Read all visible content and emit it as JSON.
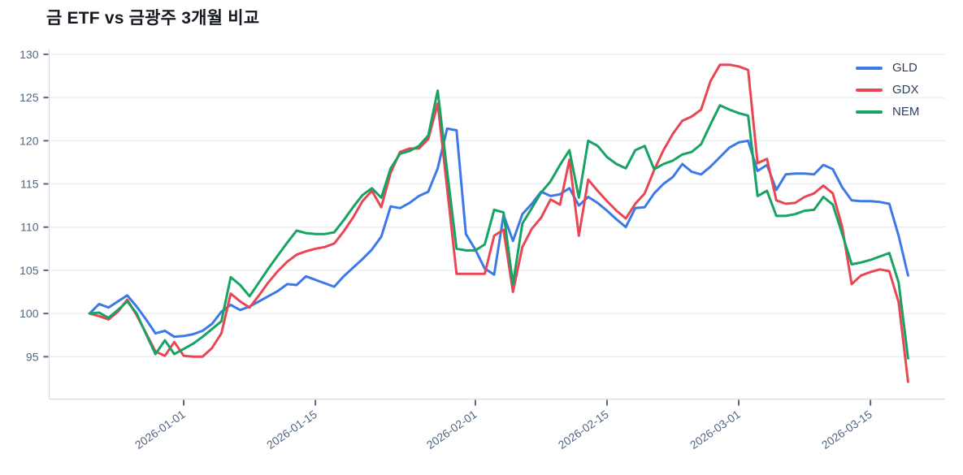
{
  "chart": {
    "title": "금 ETF vs 금광주 3개월 비교"
  },
  "chart_data": {
    "type": "line",
    "title": "금 ETF vs 금광주 3개월 비교",
    "xlabel": "",
    "ylabel": "",
    "grid": true,
    "legend_position": "top-right",
    "ylim": [
      90,
      130.6
    ],
    "yticks": [
      95,
      100,
      105,
      110,
      115,
      120,
      125,
      130
    ],
    "xticks": [
      {
        "label": "2026-01-01",
        "index": 10
      },
      {
        "label": "2026-01-15",
        "index": 24
      },
      {
        "label": "2026-02-01",
        "index": 41
      },
      {
        "label": "2026-02-15",
        "index": 55
      },
      {
        "label": "2026-03-01",
        "index": 69
      },
      {
        "label": "2026-03-15",
        "index": 83
      }
    ],
    "x_dates": [
      "2025-12-22",
      "2025-12-23",
      "2025-12-24",
      "2025-12-25",
      "2025-12-26",
      "2025-12-27",
      "2025-12-28",
      "2025-12-29",
      "2025-12-30",
      "2025-12-31",
      "2026-01-01",
      "2026-01-02",
      "2026-01-03",
      "2026-01-04",
      "2026-01-05",
      "2026-01-06",
      "2026-01-07",
      "2026-01-08",
      "2026-01-09",
      "2026-01-10",
      "2026-01-11",
      "2026-01-12",
      "2026-01-13",
      "2026-01-14",
      "2026-01-15",
      "2026-01-16",
      "2026-01-17",
      "2026-01-18",
      "2026-01-19",
      "2026-01-20",
      "2026-01-21",
      "2026-01-22",
      "2026-01-23",
      "2026-01-24",
      "2026-01-25",
      "2026-01-26",
      "2026-01-27",
      "2026-01-28",
      "2026-01-29",
      "2026-01-30",
      "2026-01-31",
      "2026-02-01",
      "2026-02-02",
      "2026-02-03",
      "2026-02-04",
      "2026-02-05",
      "2026-02-06",
      "2026-02-07",
      "2026-02-08",
      "2026-02-09",
      "2026-02-10",
      "2026-02-11",
      "2026-02-12",
      "2026-02-13",
      "2026-02-14",
      "2026-02-15",
      "2026-02-16",
      "2026-02-17",
      "2026-02-18",
      "2026-02-19",
      "2026-02-20",
      "2026-02-21",
      "2026-02-22",
      "2026-02-23",
      "2026-02-24",
      "2026-02-25",
      "2026-02-26",
      "2026-02-27",
      "2026-02-28",
      "2026-03-01",
      "2026-03-02",
      "2026-03-03",
      "2026-03-04",
      "2026-03-05",
      "2026-03-06",
      "2026-03-07",
      "2026-03-08",
      "2026-03-09",
      "2026-03-10",
      "2026-03-11",
      "2026-03-12",
      "2026-03-13",
      "2026-03-14",
      "2026-03-15",
      "2026-03-16",
      "2026-03-17",
      "2026-03-18",
      "2026-03-19"
    ],
    "series": [
      {
        "name": "GLD",
        "color": "#3c79e6",
        "values": [
          100.0,
          101.1,
          100.7,
          101.4,
          102.1,
          100.8,
          99.3,
          97.7,
          98.0,
          97.3,
          97.4,
          97.6,
          98.0,
          98.8,
          100.2,
          101.0,
          100.4,
          100.8,
          101.4,
          102.0,
          102.6,
          103.4,
          103.3,
          104.3,
          103.9,
          103.5,
          103.1,
          104.3,
          105.3,
          106.3,
          107.4,
          108.9,
          112.4,
          112.2,
          112.8,
          113.6,
          114.1,
          116.8,
          121.4,
          121.2,
          109.2,
          107.4,
          105.2,
          104.5,
          111.4,
          108.4,
          111.5,
          112.7,
          114.1,
          113.6,
          113.8,
          114.5,
          112.5,
          113.5,
          112.8,
          111.9,
          110.9,
          110.0,
          112.2,
          112.3,
          113.9,
          115.0,
          115.8,
          117.3,
          116.4,
          116.1,
          117.0,
          118.1,
          119.2,
          119.8,
          120.0,
          116.5,
          117.2,
          114.3,
          116.1,
          116.2,
          116.2,
          116.1,
          117.2,
          116.7,
          114.6,
          113.1,
          113.0,
          113.0,
          112.9,
          112.7,
          109.0,
          104.4
        ]
      },
      {
        "name": "GDX",
        "color": "#e94653",
        "values": [
          100.0,
          99.7,
          99.3,
          100.2,
          101.6,
          99.8,
          97.7,
          95.6,
          95.1,
          96.7,
          95.1,
          95.0,
          95.0,
          96.0,
          97.7,
          102.3,
          101.4,
          100.7,
          102.1,
          103.6,
          104.9,
          106.0,
          106.8,
          107.2,
          107.5,
          107.7,
          108.1,
          109.5,
          111.1,
          113.0,
          114.2,
          112.3,
          116.3,
          118.7,
          119.1,
          119.1,
          120.2,
          124.3,
          114.5,
          104.6,
          104.6,
          104.6,
          104.6,
          109.0,
          109.7,
          102.5,
          107.7,
          109.8,
          111.1,
          113.2,
          112.6,
          117.8,
          109.0,
          115.5,
          114.2,
          113.0,
          111.9,
          111.0,
          112.7,
          113.9,
          116.6,
          118.9,
          120.8,
          122.3,
          122.8,
          123.6,
          126.9,
          128.8,
          128.8,
          128.6,
          128.2,
          117.4,
          117.9,
          113.1,
          112.7,
          112.8,
          113.5,
          113.9,
          114.8,
          113.9,
          110.0,
          103.4,
          104.4,
          104.8,
          105.1,
          104.9,
          101.3,
          92.1
        ]
      },
      {
        "name": "NEM",
        "color": "#17a363",
        "values": [
          100.0,
          100.1,
          99.5,
          100.4,
          101.4,
          100.0,
          97.6,
          95.3,
          96.9,
          95.3,
          95.9,
          96.5,
          97.3,
          98.2,
          99.1,
          104.2,
          103.3,
          102.0,
          103.6,
          105.2,
          106.7,
          108.2,
          109.6,
          109.3,
          109.2,
          109.2,
          109.4,
          110.8,
          112.3,
          113.7,
          114.5,
          113.4,
          116.8,
          118.5,
          118.8,
          119.4,
          120.6,
          125.8,
          116.5,
          107.5,
          107.3,
          107.3,
          108.0,
          112.0,
          111.7,
          103.4,
          110.4,
          112.2,
          114.0,
          115.3,
          117.2,
          118.9,
          113.4,
          120.0,
          119.4,
          118.1,
          117.3,
          116.8,
          118.9,
          119.4,
          116.7,
          117.3,
          117.7,
          118.4,
          118.7,
          119.6,
          121.9,
          124.1,
          123.6,
          123.2,
          122.9,
          113.6,
          114.2,
          111.3,
          111.3,
          111.5,
          111.9,
          112.0,
          113.5,
          112.6,
          109.2,
          105.7,
          105.9,
          106.2,
          106.6,
          107.0,
          103.6,
          94.8
        ]
      }
    ],
    "style": {
      "grid_color": "#e9edf2",
      "spine_color": "#d8dde3",
      "tick_color": "#506784",
      "title_color": "#15191f",
      "legend_text_color": "#2a3f5f",
      "background": "#ffffff",
      "line_width": 3
    }
  }
}
